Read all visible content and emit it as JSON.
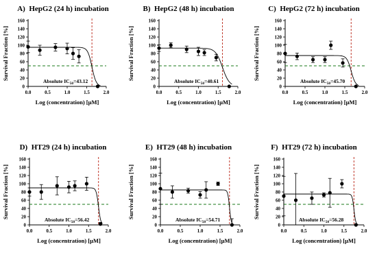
{
  "chart_data": [
    {
      "type": "scatter",
      "panel_label": "A)",
      "title": "HepG2 (24 h) incubation",
      "xlabel": "Log (concentration) [μM]",
      "ylabel": "Survival Fraction [%]",
      "xlim": [
        0,
        2.0
      ],
      "ylim": [
        0,
        160
      ],
      "xticks": [
        "0.0",
        "0.5",
        "1.0",
        "1.5",
        "2.0"
      ],
      "yticks": [
        "0",
        "20",
        "40",
        "60",
        "80",
        "100",
        "120",
        "140",
        "160"
      ],
      "ic50_prefix": "Absolute IC",
      "ic50_sub": "50",
      "ic50_value": "=43.12",
      "ic50_log": 1.634,
      "reference_y": 50,
      "points": [
        {
          "x": 0.0,
          "y": 96,
          "err": 14
        },
        {
          "x": 0.3,
          "y": 88,
          "err": 12
        },
        {
          "x": 0.7,
          "y": 95,
          "err": 9
        },
        {
          "x": 1.0,
          "y": 92,
          "err": 13
        },
        {
          "x": 1.15,
          "y": 80,
          "err": 14
        },
        {
          "x": 1.3,
          "y": 73,
          "err": 16
        },
        {
          "x": 1.78,
          "y": 0,
          "err": 0
        }
      ],
      "curve": {
        "top": 95,
        "bottom": 0,
        "hill": 8
      }
    },
    {
      "type": "scatter",
      "panel_label": "B)",
      "title": "HepG2 (48 h) incubation",
      "xlabel": "Log (concentration) [μM]",
      "ylabel": "Survival Fraction [%]",
      "xlim": [
        0,
        2.0
      ],
      "ylim": [
        0,
        160
      ],
      "xticks": [
        "0.0",
        "0.5",
        "1.0",
        "1.5",
        "2.0"
      ],
      "yticks": [
        "0",
        "20",
        "40",
        "60",
        "80",
        "100",
        "120",
        "140",
        "160"
      ],
      "ic50_prefix": "Absolute IC",
      "ic50_sub": "50",
      "ic50_value": "=40.61",
      "ic50_log": 1.609,
      "reference_y": 50,
      "points": [
        {
          "x": 0.0,
          "y": 93,
          "err": 8
        },
        {
          "x": 0.3,
          "y": 100,
          "err": 6
        },
        {
          "x": 0.7,
          "y": 90,
          "err": 8
        },
        {
          "x": 1.0,
          "y": 85,
          "err": 10
        },
        {
          "x": 1.15,
          "y": 82,
          "err": 7
        },
        {
          "x": 1.45,
          "y": 70,
          "err": 8
        },
        {
          "x": 1.78,
          "y": 0,
          "err": 0
        }
      ],
      "curve": {
        "top": 93,
        "bottom": 0,
        "hill": 5
      }
    },
    {
      "type": "scatter",
      "panel_label": "C)",
      "title": "HepG2 (72 h) incubation",
      "xlabel": "Log (concentration) [μM]",
      "ylabel": "Survival Fraction [%]",
      "xlim": [
        0,
        2.0
      ],
      "ylim": [
        0,
        160
      ],
      "xticks": [
        "0.0",
        "0.5",
        "1.0",
        "1.5",
        "2.0"
      ],
      "yticks": [
        "0",
        "20",
        "40",
        "60",
        "80",
        "100",
        "120",
        "140",
        "160"
      ],
      "ic50_prefix": "Absolute IC",
      "ic50_sub": "50",
      "ic50_value": "=45.70",
      "ic50_log": 1.66,
      "reference_y": 50,
      "points": [
        {
          "x": 0.0,
          "y": 80,
          "err": 22
        },
        {
          "x": 0.3,
          "y": 73,
          "err": 8
        },
        {
          "x": 0.7,
          "y": 65,
          "err": 7
        },
        {
          "x": 1.0,
          "y": 65,
          "err": 7
        },
        {
          "x": 1.15,
          "y": 100,
          "err": 10
        },
        {
          "x": 1.45,
          "y": 57,
          "err": 10
        },
        {
          "x": 1.78,
          "y": 0,
          "err": 0
        }
      ],
      "curve": {
        "top": 75,
        "bottom": 0,
        "hill": 8
      }
    },
    {
      "type": "scatter",
      "panel_label": "D)",
      "title": "HT29 (24 h) incubation",
      "xlabel": "Log (concentration) [μM]",
      "ylabel": "Survival Fraction [%]",
      "xlim": [
        0,
        2.0
      ],
      "ylim": [
        0,
        160
      ],
      "xticks": [
        "0.0",
        "0.5",
        "1.0",
        "1.5",
        "2.0"
      ],
      "yticks": [
        "0",
        "20",
        "40",
        "60",
        "80",
        "100",
        "120",
        "140",
        "160"
      ],
      "ic50_prefix": "Absolute IC",
      "ic50_sub": "50",
      "ic50_value": "=56.42",
      "ic50_log": 1.751,
      "reference_y": 50,
      "points": [
        {
          "x": 0.0,
          "y": 80,
          "err": 10
        },
        {
          "x": 0.3,
          "y": 80,
          "err": 18
        },
        {
          "x": 0.7,
          "y": 95,
          "err": 22
        },
        {
          "x": 1.0,
          "y": 92,
          "err": 14
        },
        {
          "x": 1.15,
          "y": 95,
          "err": 12
        },
        {
          "x": 1.45,
          "y": 100,
          "err": 16
        },
        {
          "x": 1.8,
          "y": 2,
          "err": 4
        }
      ],
      "curve": {
        "top": 90,
        "bottom": 0,
        "hill": 15
      }
    },
    {
      "type": "scatter",
      "panel_label": "E)",
      "title": "HT29 (48 h) incubation",
      "xlabel": "Log (concentration) [μM]",
      "ylabel": "Survival Fraction [%]",
      "xlim": [
        0,
        2.0
      ],
      "ylim": [
        0,
        160
      ],
      "xticks": [
        "0.0",
        "0.5",
        "1.0",
        "1.5",
        "2.0"
      ],
      "yticks": [
        "0",
        "20",
        "40",
        "60",
        "80",
        "100",
        "120",
        "140",
        "160"
      ],
      "ic50_prefix": "Absolute IC",
      "ic50_sub": "50",
      "ic50_value": "=54.71",
      "ic50_log": 1.738,
      "reference_y": 50,
      "points": [
        {
          "x": 0.0,
          "y": 88,
          "err": 38
        },
        {
          "x": 0.3,
          "y": 80,
          "err": 15
        },
        {
          "x": 0.7,
          "y": 83,
          "err": 6
        },
        {
          "x": 1.0,
          "y": 73,
          "err": 8
        },
        {
          "x": 1.15,
          "y": 85,
          "err": 20
        },
        {
          "x": 1.45,
          "y": 100,
          "err": 4
        },
        {
          "x": 1.8,
          "y": 0,
          "err": 15
        }
      ],
      "curve": {
        "top": 85,
        "bottom": 0,
        "hill": 20
      }
    },
    {
      "type": "scatter",
      "panel_label": "F)",
      "title": "HT29 (72 h) incubation",
      "xlabel": "Log (concentration) [μM]",
      "ylabel": "Survival Fraction [%]",
      "xlim": [
        0,
        2.0
      ],
      "ylim": [
        0,
        160
      ],
      "xticks": [
        "0.0",
        "0.5",
        "1.0",
        "1.5",
        "2.0"
      ],
      "yticks": [
        "0",
        "20",
        "40",
        "60",
        "80",
        "100",
        "120",
        "140",
        "160"
      ],
      "ic50_prefix": "Absolute IC",
      "ic50_sub": "50",
      "ic50_value": "=56.28",
      "ic50_log": 1.75,
      "reference_y": 50,
      "points": [
        {
          "x": 0.0,
          "y": 70,
          "err": 48
        },
        {
          "x": 0.3,
          "y": 60,
          "err": 65
        },
        {
          "x": 0.7,
          "y": 65,
          "err": 15
        },
        {
          "x": 1.0,
          "y": 73,
          "err": 5
        },
        {
          "x": 1.15,
          "y": 78,
          "err": 35
        },
        {
          "x": 1.45,
          "y": 100,
          "err": 10
        },
        {
          "x": 1.8,
          "y": 0,
          "err": 0
        }
      ],
      "curve": {
        "top": 75,
        "bottom": 0,
        "hill": 20
      }
    }
  ]
}
